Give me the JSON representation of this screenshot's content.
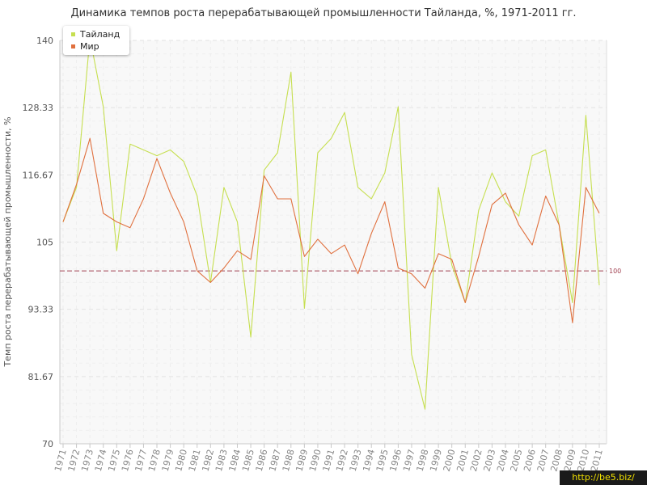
{
  "chart_data": {
    "type": "line",
    "title": "Динамика темпов роста перерабатывающей промышленности Тайланда, %, 1971-2011 гг.",
    "xlabel": "",
    "ylabel": "Темп роста перерабатывающей промышленности, %",
    "ylim": [
      70,
      140
    ],
    "yticks": [
      "70",
      "81.67",
      "93.33",
      "105",
      "116.67",
      "128.33",
      "140"
    ],
    "ytick_values": [
      70,
      81.67,
      93.33,
      105,
      116.67,
      128.33,
      140
    ],
    "categories": [
      "1971",
      "1972",
      "1973",
      "1974",
      "1975",
      "1976",
      "1977",
      "1978",
      "1979",
      "1980",
      "1981",
      "1982",
      "1983",
      "1984",
      "1985",
      "1986",
      "1987",
      "1988",
      "1989",
      "1990",
      "1991",
      "1992",
      "1993",
      "1994",
      "1995",
      "1996",
      "1997",
      "1998",
      "1999",
      "2000",
      "2001",
      "2002",
      "2003",
      "2004",
      "2005",
      "2006",
      "2007",
      "2008",
      "2009",
      "2010",
      "2011"
    ],
    "series": [
      {
        "name": "Тайланд",
        "color": "#c6df50",
        "values": [
          108.5,
          114.5,
          140.5,
          128.5,
          103.5,
          122,
          121,
          120,
          121,
          119,
          113,
          98,
          114.5,
          108.5,
          88.5,
          117.5,
          120.5,
          134.5,
          93.5,
          120.5,
          123,
          127.5,
          114.5,
          112.5,
          117,
          128.5,
          85.5,
          76,
          114.5,
          101,
          94.5,
          110.5,
          117,
          112,
          109.5,
          120,
          121,
          108,
          94.5,
          127,
          97.5
        ]
      },
      {
        "name": "Мир",
        "color": "#e0703e",
        "values": [
          108.5,
          115,
          123,
          110,
          108.5,
          107.5,
          112.5,
          119.5,
          113.5,
          108.5,
          100,
          98,
          100.5,
          103.5,
          102,
          116.5,
          112.5,
          112.5,
          102.5,
          105.5,
          103,
          104.5,
          99.5,
          106.5,
          112,
          100.5,
          99.5,
          97,
          103,
          102,
          94.5,
          102.5,
          111.5,
          113.5,
          108,
          104.5,
          113,
          108,
          91,
          114.5,
          110
        ]
      }
    ],
    "reference_line": {
      "value": 100,
      "label": "100",
      "color": "#a04050"
    },
    "grid": true,
    "legend_position": "top-left"
  },
  "watermark": "http://be5.biz/"
}
